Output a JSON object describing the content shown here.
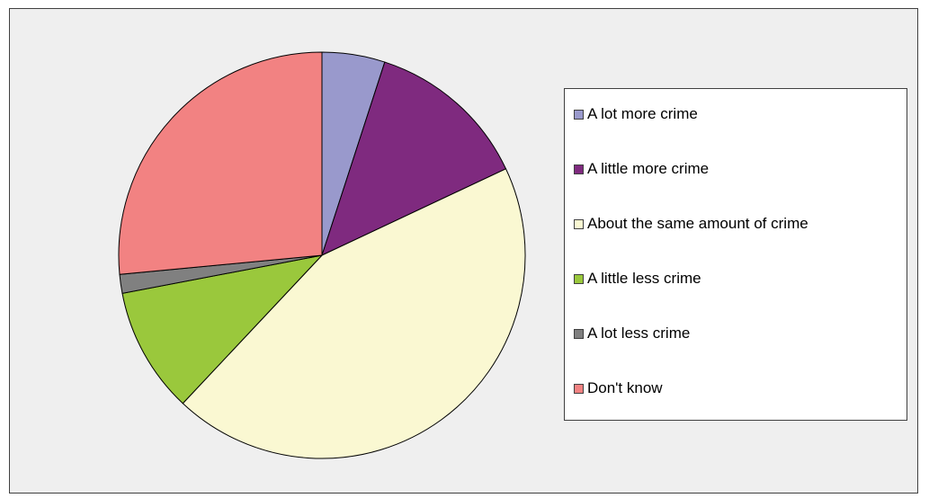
{
  "chart_data": {
    "type": "pie",
    "title": "",
    "series": [
      {
        "values": [
          5,
          13,
          44,
          10,
          1.5,
          26.5
        ]
      }
    ],
    "categories": [
      "A lot more crime",
      "A little more crime",
      "About the same amount of crime",
      "A little less crime",
      "A lot less crime",
      "Don't know"
    ],
    "colors": [
      "#9999cc",
      "#7f2a7f",
      "#faf8d2",
      "#9ac83c",
      "#808080",
      "#f28282"
    ],
    "start_angle_deg": 0,
    "direction": "clockwise",
    "legend_position": "right"
  }
}
